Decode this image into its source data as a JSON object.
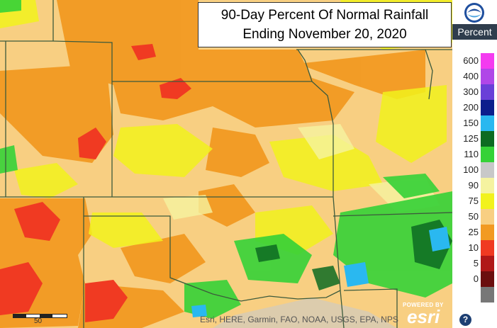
{
  "map": {
    "title_line1": "90-Day Percent Of Normal Rainfall",
    "title_line2": "Ending November 20, 2020"
  },
  "legend": {
    "title": "Percent",
    "logo": "noaa-logo",
    "items": [
      {
        "label": "600",
        "color": "#f43bf0"
      },
      {
        "label": "400",
        "color": "#b046e8"
      },
      {
        "label": "300",
        "color": "#6a3fd8"
      },
      {
        "label": "200",
        "color": "#0c1e8c"
      },
      {
        "label": "150",
        "color": "#2ab8f0"
      },
      {
        "label": "125",
        "color": "#0d6b22"
      },
      {
        "label": "110",
        "color": "#35d237"
      },
      {
        "label": "100",
        "color": "#c8c8c8"
      },
      {
        "label": "90",
        "color": "#f5f3a0"
      },
      {
        "label": "75",
        "color": "#f2f21c"
      },
      {
        "label": "50",
        "color": "#f8cf82"
      },
      {
        "label": "25",
        "color": "#f29a22"
      },
      {
        "label": "10",
        "color": "#f03a22"
      },
      {
        "label": "5",
        "color": "#b01818"
      },
      {
        "label": "0",
        "color": "#6b0e0e"
      },
      {
        "label": "",
        "color": "#777777"
      }
    ]
  },
  "attribution": "Esri, HERE, Garmin, FAO, NOAA, USGS, EPA, NPS",
  "esri": {
    "powered": "POWERED BY",
    "word": "esri"
  },
  "scale": {
    "label": "50"
  },
  "help": {
    "symbol": "?"
  }
}
